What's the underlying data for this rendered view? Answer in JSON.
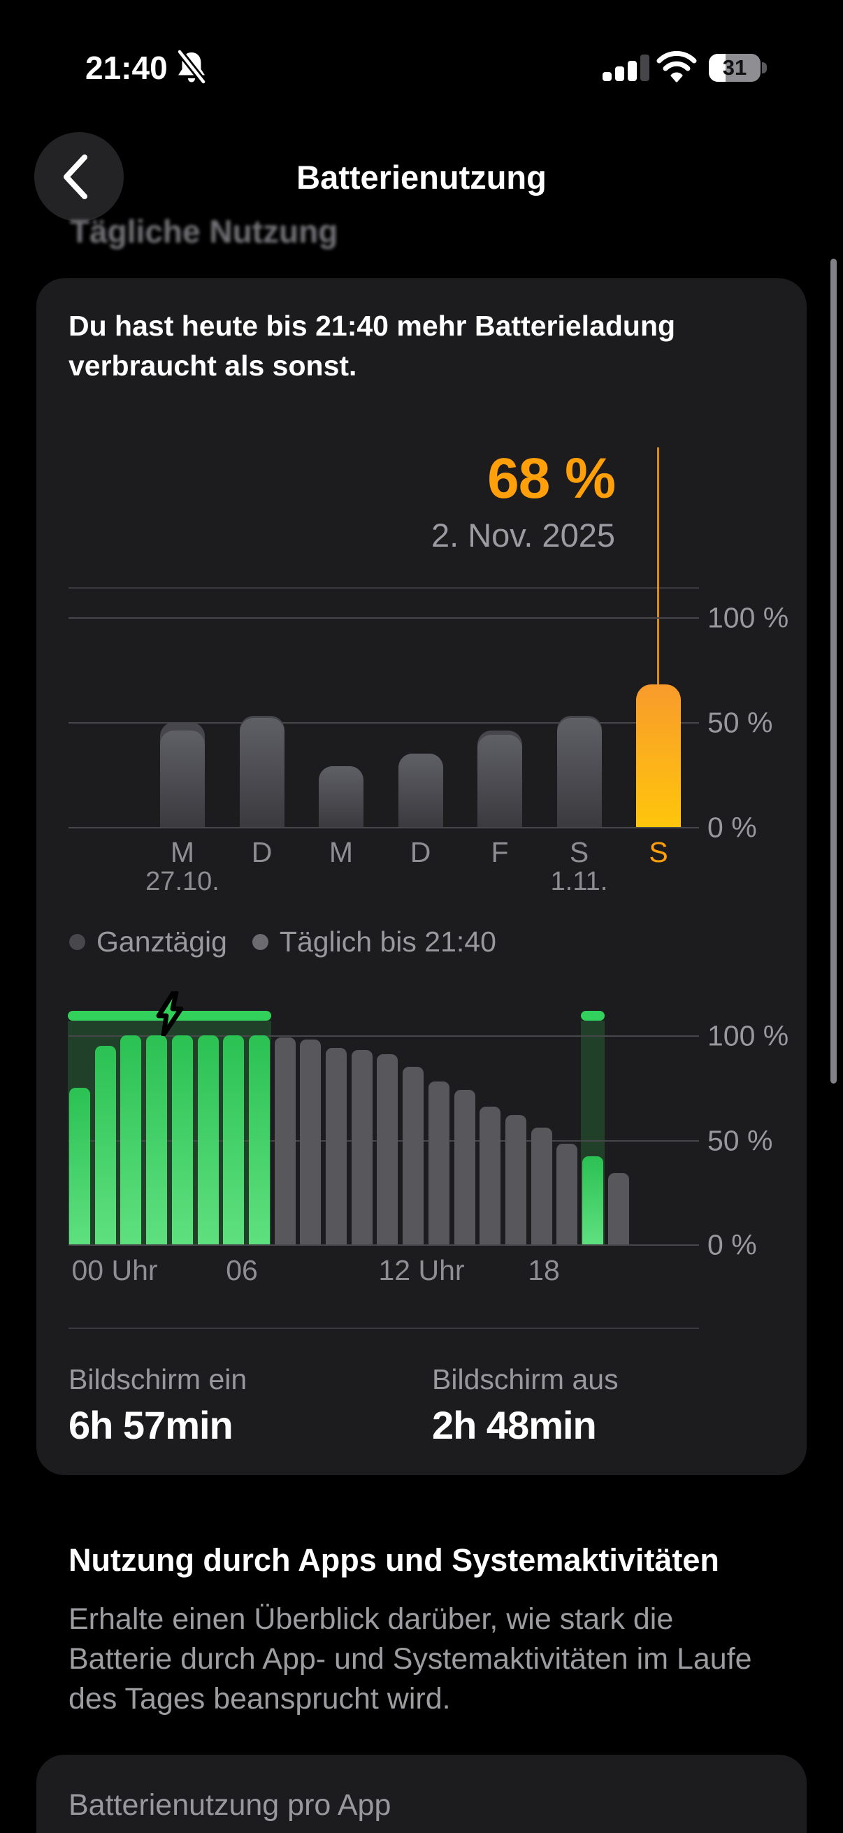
{
  "status": {
    "time": "21:40",
    "battery_percent": "31"
  },
  "nav": {
    "title": "Batterienutzung"
  },
  "ghost_header": "Tägliche Nutzung",
  "usage_card": {
    "summary": "Du hast heute bis 21:40 mehr Batterieladung verbraucht als sonst.",
    "callout_value": "68 %",
    "callout_date": "2. Nov. 2025"
  },
  "legend": {
    "items": [
      "Ganztägig",
      "Täglich bis 21:40"
    ]
  },
  "screen_stats": {
    "on_label": "Bildschirm ein",
    "on_value": "6h 57min",
    "off_label": "Bildschirm aus",
    "off_value": "2h 48min"
  },
  "apps_section": {
    "heading": "Nutzung durch Apps und Systemaktivitäten",
    "body_lines": [
      "Erhalte einen Überblick darüber, wie stark die",
      "Batterie durch App- und Systemaktivitäten im Laufe",
      "des Tages beansprucht wird."
    ]
  },
  "app_usage_card": {
    "title": "Batterienutzung pro App"
  },
  "colors": {
    "accent_orange": "#FF9F0A",
    "charge_green": "#30D158"
  },
  "chart_data": [
    {
      "type": "bar",
      "name": "weekly-battery-usage",
      "categories": [
        "M",
        "D",
        "M",
        "D",
        "F",
        "S",
        "S"
      ],
      "category_dates": [
        "27.10.",
        "",
        "",
        "",
        "",
        "1.11.",
        ""
      ],
      "series": [
        {
          "name": "Ganztägig",
          "values": [
            50,
            53,
            29,
            35,
            46,
            53,
            68
          ]
        },
        {
          "name": "Täglich bis 21:40",
          "values": [
            46,
            52,
            29,
            35,
            44,
            52,
            68
          ]
        }
      ],
      "highlight_index": 6,
      "highlight_value_label": "68 %",
      "ytick_labels": [
        "100 %",
        "50 %",
        "0 %"
      ],
      "ylim": [
        0,
        100
      ],
      "legend_position": "below"
    },
    {
      "type": "bar",
      "name": "daily-battery-level",
      "x_hours": [
        0,
        1,
        2,
        3,
        4,
        5,
        6,
        7,
        8,
        9,
        10,
        11,
        12,
        13,
        14,
        15,
        16,
        17,
        18,
        19,
        20,
        21
      ],
      "values": [
        75,
        95,
        100,
        100,
        100,
        100,
        100,
        100,
        99,
        98,
        94,
        93,
        91,
        85,
        78,
        74,
        66,
        62,
        56,
        48,
        42,
        34
      ],
      "charging_hour_ranges": [
        [
          0,
          7
        ],
        [
          20,
          20
        ]
      ],
      "xtick_labels": [
        "00 Uhr",
        "06",
        "12 Uhr",
        "18"
      ],
      "ytick_labels": [
        "100 %",
        "50 %",
        "0 %"
      ],
      "ylim": [
        0,
        100
      ]
    }
  ]
}
